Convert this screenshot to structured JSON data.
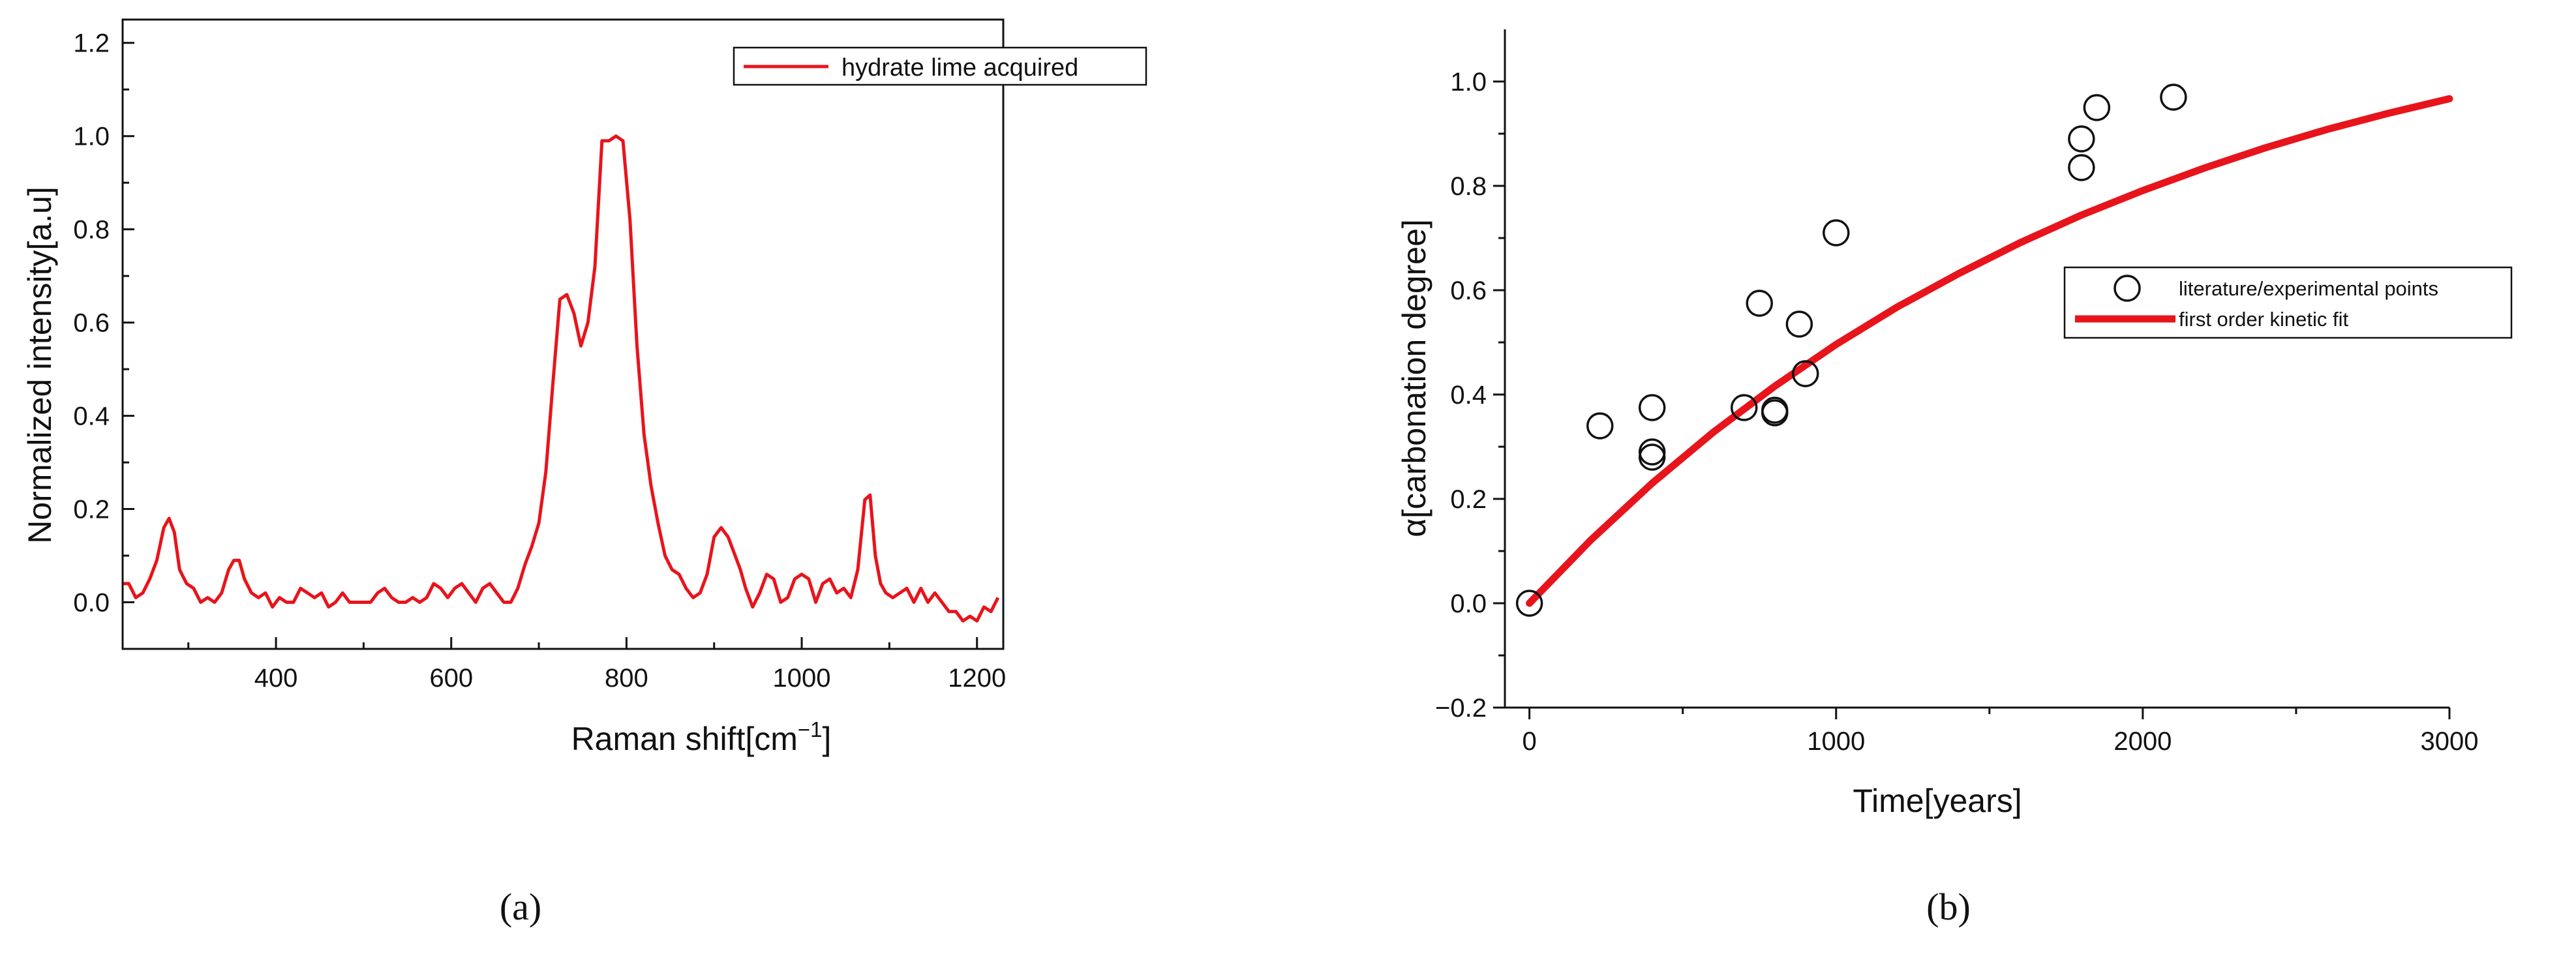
{
  "chart_data": [
    {
      "type": "line",
      "panel_label": "(a)",
      "xlabel": "Raman shift[cm",
      "xlabel_sup": "−1",
      "xlabel_end": "]",
      "ylabel": "Normalized intensity[a.u]",
      "xlim": [
        225,
        1230
      ],
      "ylim": [
        -0.1,
        1.25
      ],
      "x_ticks": [
        400,
        600,
        800,
        1000,
        1200
      ],
      "x_tick_labels": [
        "400",
        "600",
        "800",
        "1000",
        "1200"
      ],
      "x_minor_ticks": [
        300,
        500,
        700,
        900,
        1100
      ],
      "y_ticks": [
        0.0,
        0.2,
        0.4,
        0.6,
        0.8,
        1.0,
        1.2
      ],
      "y_tick_labels": [
        "0.0",
        "0.2",
        "0.4",
        "0.6",
        "0.8",
        "1.0",
        "1.2"
      ],
      "y_minor_ticks": [
        -0.1,
        0.1,
        0.3,
        0.5,
        0.7,
        0.9,
        1.1
      ],
      "grid": false,
      "legend_position": "top-right",
      "colors": {
        "series": "#e8141c",
        "axis": "#111111"
      },
      "series": [
        {
          "name": "hydrate lime acquired",
          "x": [
            225,
            232,
            240,
            248,
            256,
            264,
            272,
            278,
            284,
            290,
            298,
            306,
            314,
            322,
            330,
            338,
            346,
            352,
            358,
            364,
            372,
            380,
            388,
            396,
            404,
            412,
            420,
            428,
            436,
            444,
            452,
            460,
            468,
            476,
            484,
            492,
            500,
            508,
            516,
            524,
            532,
            540,
            548,
            556,
            564,
            572,
            580,
            588,
            596,
            604,
            612,
            620,
            628,
            636,
            644,
            652,
            660,
            668,
            676,
            684,
            692,
            700,
            708,
            716,
            724,
            732,
            740,
            748,
            756,
            764,
            772,
            780,
            788,
            796,
            804,
            812,
            820,
            828,
            836,
            844,
            852,
            860,
            868,
            876,
            884,
            892,
            900,
            908,
            916,
            924,
            930,
            936,
            944,
            952,
            960,
            968,
            976,
            984,
            992,
            1000,
            1008,
            1016,
            1024,
            1032,
            1040,
            1048,
            1056,
            1064,
            1072,
            1078,
            1084,
            1090,
            1096,
            1104,
            1112,
            1120,
            1128,
            1136,
            1144,
            1152,
            1160,
            1168,
            1176,
            1184,
            1192,
            1200,
            1208,
            1216,
            1224
          ],
          "values": [
            0.04,
            0.04,
            0.01,
            0.02,
            0.05,
            0.09,
            0.16,
            0.18,
            0.15,
            0.07,
            0.04,
            0.03,
            0.0,
            0.01,
            0.0,
            0.02,
            0.07,
            0.09,
            0.09,
            0.05,
            0.02,
            0.01,
            0.02,
            -0.01,
            0.01,
            0.0,
            0.0,
            0.03,
            0.02,
            0.01,
            0.02,
            -0.01,
            0.0,
            0.02,
            0.0,
            0.0,
            0.0,
            0.0,
            0.02,
            0.03,
            0.01,
            0.0,
            0.0,
            0.01,
            0.0,
            0.01,
            0.04,
            0.03,
            0.01,
            0.03,
            0.04,
            0.02,
            0.0,
            0.03,
            0.04,
            0.02,
            0.0,
            0.0,
            0.03,
            0.08,
            0.12,
            0.17,
            0.28,
            0.47,
            0.65,
            0.66,
            0.62,
            0.55,
            0.6,
            0.72,
            0.99,
            0.99,
            1.0,
            0.99,
            0.82,
            0.55,
            0.36,
            0.25,
            0.17,
            0.1,
            0.07,
            0.06,
            0.03,
            0.01,
            0.02,
            0.06,
            0.14,
            0.16,
            0.14,
            0.1,
            0.07,
            0.03,
            -0.01,
            0.02,
            0.06,
            0.05,
            0.0,
            0.01,
            0.05,
            0.06,
            0.05,
            0.0,
            0.04,
            0.05,
            0.02,
            0.03,
            0.01,
            0.07,
            0.22,
            0.23,
            0.1,
            0.04,
            0.02,
            0.01,
            0.02,
            0.03,
            0.0,
            0.03,
            0.0,
            0.02,
            0.0,
            -0.02,
            -0.02,
            -0.04,
            -0.03,
            -0.04,
            -0.01,
            -0.02,
            0.01
          ]
        }
      ]
    },
    {
      "type": "scatter",
      "panel_label": "(b)",
      "xlabel": "Time[years]",
      "ylabel": "α[carbonation degree]",
      "xlim": [
        -80,
        3000
      ],
      "ylim": [
        -0.2,
        1.1
      ],
      "x_ticks": [
        0,
        1000,
        2000,
        3000
      ],
      "x_tick_labels": [
        "0",
        "1000",
        "2000",
        "3000"
      ],
      "x_minor_ticks": [
        500,
        1500,
        2500
      ],
      "y_ticks": [
        -0.2,
        0.0,
        0.2,
        0.4,
        0.6,
        0.8,
        1.0
      ],
      "y_tick_labels": [
        "−0.2",
        "0.0",
        "0.2",
        "0.4",
        "0.6",
        "0.8",
        "1.0"
      ],
      "y_minor_ticks": [
        -0.1,
        0.1,
        0.3,
        0.5,
        0.7,
        0.9
      ],
      "grid": false,
      "legend_position": "center-right",
      "colors": {
        "fit": "#e8141c",
        "points": "#111111",
        "axis": "#111111"
      },
      "series": [
        {
          "name": "literature/experimental points",
          "marker": "open-circle",
          "x": [
            0,
            230,
            400,
            400,
            400,
            700,
            750,
            800,
            800,
            880,
            900,
            1000,
            1800,
            1800,
            1850,
            2100
          ],
          "values": [
            0.0,
            0.34,
            0.375,
            0.29,
            0.28,
            0.375,
            0.575,
            0.37,
            0.365,
            0.535,
            0.44,
            0.71,
            0.89,
            0.835,
            0.95,
            0.97
          ]
        },
        {
          "name": "first order kinetic fit",
          "marker": "line",
          "x": [
            0,
            200,
            400,
            600,
            800,
            1000,
            1200,
            1400,
            1600,
            1800,
            2000,
            2200,
            2400,
            2600,
            2800,
            3000
          ],
          "values": [
            0.0,
            0.121,
            0.23,
            0.328,
            0.416,
            0.496,
            0.568,
            0.632,
            0.691,
            0.744,
            0.791,
            0.834,
            0.873,
            0.908,
            0.939,
            0.967
          ]
        }
      ]
    }
  ]
}
